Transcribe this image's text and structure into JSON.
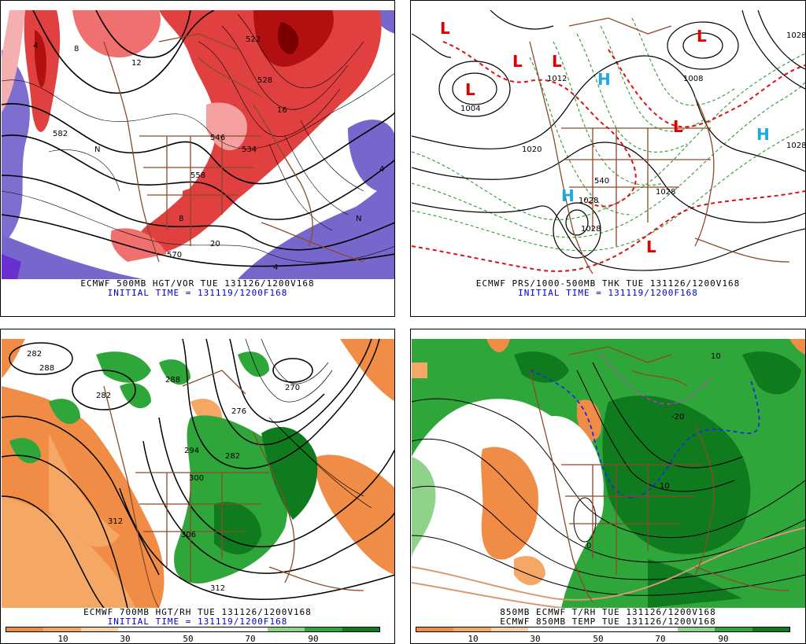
{
  "panels": {
    "top_left": {
      "title_line1": "ECMWF 500MB HGT/VOR TUE 131126/1200V168",
      "title_line2": "INITIAL TIME = 131119/1200F168",
      "labels": [
        "534",
        "582",
        "558",
        "570",
        "546",
        "522",
        "528",
        "4",
        "8",
        "12",
        "16",
        "20",
        "N",
        "X"
      ]
    },
    "top_right": {
      "title_line1": "ECMWF PRS/1000-500MB THK TUE 131126/1200V168",
      "title_line2": "INITIAL TIME = 131119/1200F168",
      "pressure_labels": [
        "1004",
        "1012",
        "1020",
        "1028",
        "1008",
        "1024"
      ],
      "thickness_label": "540",
      "lows": [
        "L",
        "L",
        "L",
        "L",
        "L",
        "L",
        "L"
      ],
      "highs": [
        "H",
        "H",
        "H"
      ]
    },
    "bottom_left": {
      "title_line1": "ECMWF 700MB HGT/RH TUE 131126/1200V168",
      "title_line2": "INITIAL TIME = 131119/1200F168",
      "labels": [
        "282",
        "288",
        "300",
        "306",
        "312",
        "294",
        "270",
        "276"
      ],
      "colorbar_ticks": [
        "10",
        "30",
        "50",
        "70",
        "90"
      ]
    },
    "bottom_right": {
      "title_line1": "850MB ECMWF T/RH TUE 131126/1200V168",
      "title_line2": "ECMWF 850MB TEMP TUE 131126/1200V168",
      "labels": [
        "0",
        "10",
        "-10",
        "-20",
        "10"
      ],
      "colorbar_ticks": [
        "10",
        "30",
        "50",
        "70",
        "90"
      ]
    }
  },
  "colors": {
    "vorticity_red": "#e03c3c",
    "vorticity_dark": "#8b0000",
    "vorticity_purple": "#7766cc",
    "rh_orange": "#f08c46",
    "rh_green": "#2fa63a",
    "rh_dark_green": "#0f7a1e",
    "map_brown": "#8b4a2a",
    "caption_blue": "#0000c8"
  }
}
